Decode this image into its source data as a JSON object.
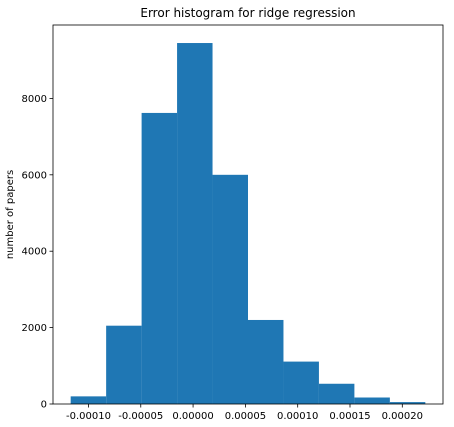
{
  "chart_data": {
    "type": "bar",
    "title": "Error histogram for ridge regression",
    "xlabel": "",
    "ylabel": "number of papers",
    "bar_color": "#1f77b4",
    "bin_edges": [
      -0.000117,
      -8.31e-05,
      -4.92e-05,
      -1.53e-05,
      1.86e-05,
      5.25e-05,
      8.64e-05,
      0.0001203,
      0.0001542,
      0.0001881,
      0.000222
    ],
    "values": [
      200,
      2050,
      7620,
      9450,
      6000,
      2200,
      1110,
      530,
      170,
      50
    ],
    "xlim": [
      -0.0001339,
      0.0002389
    ],
    "ylim": [
      0,
      9922
    ],
    "xticks": [
      -0.0001,
      -5e-05,
      0,
      5e-05,
      0.0001,
      0.00015,
      0.0002
    ],
    "xtick_labels": [
      "-0.00010",
      "-0.00005",
      "0.00000",
      "0.00005",
      "0.00010",
      "0.00015",
      "0.00020"
    ],
    "yticks": [
      0,
      2000,
      4000,
      6000,
      8000
    ],
    "ytick_labels": [
      "0",
      "2000",
      "4000",
      "6000",
      "8000"
    ],
    "grid": false,
    "legend": "none"
  }
}
